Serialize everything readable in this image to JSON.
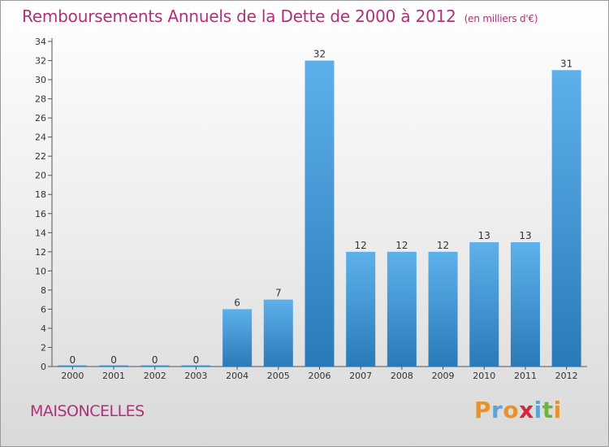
{
  "title": "Remboursements Annuels de la Dette de 2000 à 2012",
  "unit": "(en milliers d'€)",
  "commune": "MAISONCELLES",
  "logo": {
    "letters": [
      "P",
      "r",
      "o",
      "x",
      "i",
      "t",
      "i"
    ],
    "colors": [
      "#e8932a",
      "#5aa5d8",
      "#e8932a",
      "#d9263f",
      "#5aa5d8",
      "#6db33f",
      "#e8932a"
    ]
  },
  "chart_data": {
    "type": "bar",
    "categories": [
      "2000",
      "2001",
      "2002",
      "2003",
      "2004",
      "2005",
      "2006",
      "2007",
      "2008",
      "2009",
      "2010",
      "2011",
      "2012"
    ],
    "values": [
      0,
      0,
      0,
      0,
      6,
      7,
      32,
      12,
      12,
      12,
      13,
      13,
      31
    ],
    "ylim": [
      0,
      34
    ],
    "yticks": [
      0,
      2,
      4,
      6,
      8,
      10,
      12,
      14,
      16,
      18,
      20,
      22,
      24,
      26,
      28,
      30,
      32,
      34
    ],
    "grid": false,
    "bar_color": "#4a9fdf"
  }
}
